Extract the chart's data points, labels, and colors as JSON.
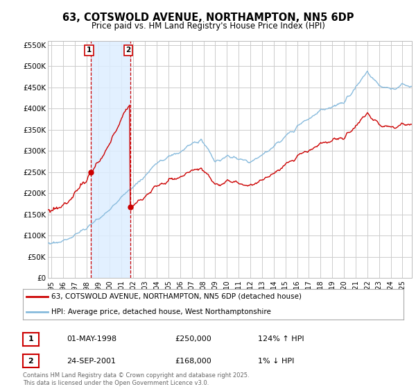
{
  "title": "63, COTSWOLD AVENUE, NORTHAMPTON, NN5 6DP",
  "subtitle": "Price paid vs. HM Land Registry's House Price Index (HPI)",
  "title_fontsize": 10.5,
  "subtitle_fontsize": 8.5,
  "background_color": "#ffffff",
  "plot_bg_color": "#ffffff",
  "grid_color": "#cccccc",
  "ylim": [
    0,
    560000
  ],
  "yticks": [
    0,
    50000,
    100000,
    150000,
    200000,
    250000,
    300000,
    350000,
    400000,
    450000,
    500000,
    550000
  ],
  "ytick_labels": [
    "£0",
    "£50K",
    "£100K",
    "£150K",
    "£200K",
    "£250K",
    "£300K",
    "£350K",
    "£400K",
    "£450K",
    "£500K",
    "£550K"
  ],
  "sale1_year": 1998.37,
  "sale1_price": 250000,
  "sale1_hpi": "124% ↑ HPI",
  "sale1_date": "01-MAY-1998",
  "sale2_year": 2001.73,
  "sale2_price": 168000,
  "sale2_hpi": "1% ↓ HPI",
  "sale2_date": "24-SEP-2001",
  "legend_line1": "63, COTSWOLD AVENUE, NORTHAMPTON, NN5 6DP (detached house)",
  "legend_line2": "HPI: Average price, detached house, West Northamptonshire",
  "footnote": "Contains HM Land Registry data © Crown copyright and database right 2025.\nThis data is licensed under the Open Government Licence v3.0.",
  "red_color": "#cc0000",
  "blue_color": "#88bbdd",
  "shade_color": "#ddeeff",
  "xmin": 1994.7,
  "xmax": 2025.8
}
